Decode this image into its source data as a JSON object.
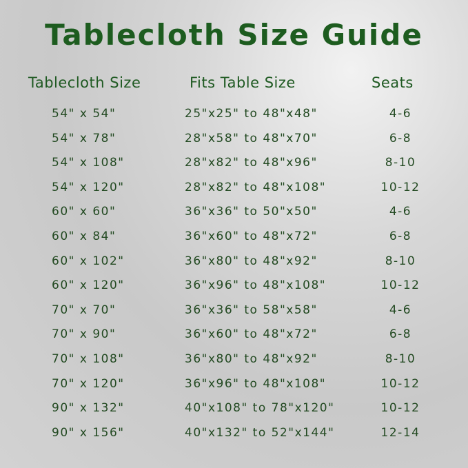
{
  "title": "Tablecloth Size Guide",
  "headers": {
    "size": "Tablecloth Size",
    "fits": "Fits Table Size",
    "seats": "Seats"
  },
  "rows": [
    {
      "size": "54\" x 54\"",
      "fits": "25\"x25\" to 48\"x48\"",
      "seats": "4-6"
    },
    {
      "size": "54\" x 78\"",
      "fits": "28\"x58\" to 48\"x70\"",
      "seats": "6-8"
    },
    {
      "size": "54\" x 108\"",
      "fits": "28\"x82\" to 48\"x96\"",
      "seats": "8-10"
    },
    {
      "size": "54\" x 120\"",
      "fits": "28\"x82\" to 48\"x108\"",
      "seats": "10-12"
    },
    {
      "size": "60\" x 60\"",
      "fits": "36\"x36\" to 50\"x50\"",
      "seats": "4-6"
    },
    {
      "size": "60\" x 84\"",
      "fits": "36\"x60\" to 48\"x72\"",
      "seats": "6-8"
    },
    {
      "size": "60\" x 102\"",
      "fits": "36\"x80\" to 48\"x92\"",
      "seats": "8-10"
    },
    {
      "size": "60\" x 120\"",
      "fits": "36\"x96\" to 48\"x108\"",
      "seats": "10-12"
    },
    {
      "size": "70\" x 70\"",
      "fits": "36\"x36\" to 58\"x58\"",
      "seats": "4-6"
    },
    {
      "size": "70\" x 90\"",
      "fits": "36\"x60\" to 48\"x72\"",
      "seats": "6-8"
    },
    {
      "size": "70\" x 108\"",
      "fits": "36\"x80\" to 48\"x92\"",
      "seats": "8-10"
    },
    {
      "size": "70\" x 120\"",
      "fits": "36\"x96\" to 48\"x108\"",
      "seats": "10-12"
    },
    {
      "size": "90\" x 132\"",
      "fits": "40\"x108\" to 78\"x120\"",
      "seats": "10-12"
    },
    {
      "size": "90\" x 156\"",
      "fits": "40\"x132\" to 52\"x144\"",
      "seats": "12-14"
    }
  ]
}
